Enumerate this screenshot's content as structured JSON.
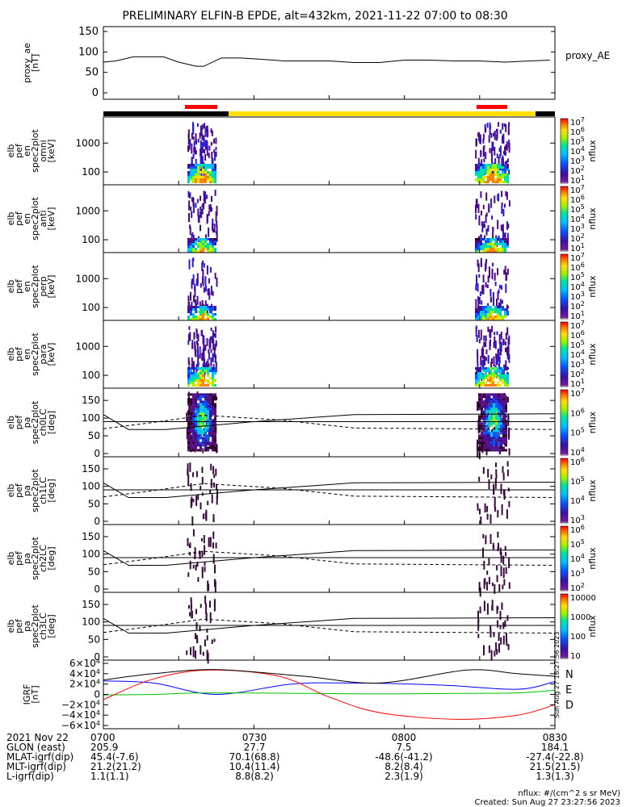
{
  "title": "PRELIMINARY ELFIN-B EPDE, alt=432km, 2021-11-22 07:00 to 08:30",
  "chart_data": [
    {
      "type": "line",
      "ylabel": "proxy_ae [nT]",
      "legend": "proxy_AE",
      "ylim": [
        0,
        150
      ],
      "yticks": [
        "150",
        "100",
        "50",
        "0"
      ],
      "x_minutes": [
        0,
        5,
        12,
        24,
        30,
        37,
        40,
        47,
        55,
        68,
        72,
        80,
        90,
        100,
        110,
        120,
        130,
        140,
        150,
        160,
        170,
        178
      ],
      "values": [
        75,
        78,
        88,
        88,
        75,
        65,
        65,
        85,
        85,
        80,
        78,
        78,
        78,
        74,
        74,
        80,
        80,
        78,
        78,
        75,
        78,
        80
      ]
    },
    {
      "type": "heatmap",
      "ylabel": "elb pef en spec2plot omni [keV]",
      "ylim_keV": [
        50,
        7000
      ],
      "yticks": [
        "1000",
        "100"
      ],
      "colorbar": {
        "label": "nflux",
        "ticks": [
          "10^7",
          "10^6",
          "10^5",
          "10^4",
          "10^3",
          "10^2",
          "10^1"
        ]
      },
      "passes_minutes": [
        [
          16,
          23
        ],
        [
          139,
          148
        ]
      ]
    },
    {
      "type": "heatmap",
      "ylabel": "elb pef en spec2plot anti [keV]",
      "yticks": [
        "1000",
        "100"
      ],
      "colorbar": {
        "label": "nflux",
        "ticks": [
          "10^7",
          "10^6",
          "10^5",
          "10^4",
          "10^3",
          "10^2",
          "10^1"
        ]
      }
    },
    {
      "type": "heatmap",
      "ylabel": "elb pef en spec2plot perp [keV]",
      "yticks": [
        "1000",
        "100"
      ],
      "colorbar": {
        "label": "nflux",
        "ticks": [
          "10^7",
          "10^6",
          "10^5",
          "10^4",
          "10^3",
          "10^2",
          "10^1"
        ]
      }
    },
    {
      "type": "heatmap",
      "ylabel": "elb pef en spec2plot para [keV]",
      "yticks": [
        "1000",
        "100"
      ],
      "colorbar": {
        "label": "nflux",
        "ticks": [
          "10^7",
          "10^6",
          "10^5",
          "10^4",
          "10^3",
          "10^2",
          "10^1"
        ]
      }
    },
    {
      "type": "heatmap",
      "ylabel": "elb pef pa spec2plot ch0LC [deg]",
      "ylim": [
        0,
        180
      ],
      "yticks": [
        "150",
        "100",
        "50",
        "0"
      ],
      "colorbar": {
        "label": "nflux",
        "ticks": [
          "10^7",
          "10^6",
          "10^5",
          "10^4"
        ]
      }
    },
    {
      "type": "heatmap",
      "ylabel": "elb pef pa spec2plot ch1LC [deg]",
      "ylim": [
        0,
        180
      ],
      "yticks": [
        "150",
        "100",
        "50",
        "0"
      ],
      "colorbar": {
        "label": "nflux",
        "ticks": [
          "10^6",
          "10^5",
          "10^4",
          "10^3"
        ]
      }
    },
    {
      "type": "heatmap",
      "ylabel": "elb pef pa spec2plot ch2LC [deg]",
      "ylim": [
        0,
        180
      ],
      "yticks": [
        "150",
        "100",
        "50",
        "0"
      ],
      "colorbar": {
        "label": "nflux",
        "ticks": [
          "10^6",
          "10^5",
          "10^4",
          "10^3",
          "10^2"
        ]
      }
    },
    {
      "type": "heatmap",
      "ylabel": "elb pef pa spec2plot ch3LC [deg]",
      "ylim": [
        0,
        180
      ],
      "yticks": [
        "150",
        "100",
        "50",
        "0"
      ],
      "colorbar": {
        "label": "nflux",
        "ticks": [
          "10000",
          "1000",
          "100",
          "10"
        ]
      }
    },
    {
      "type": "line",
      "ylabel": "IGRF [nT]",
      "ylim": [
        -60000,
        60000
      ],
      "yticks": [
        "6×10^4",
        "4×10^4",
        "2×10^4",
        "0",
        "−2×10^4",
        "−4×10^4",
        "−6×10^4"
      ],
      "series": [
        {
          "name": "N",
          "color": "#0000ff",
          "x_minutes": [
            0,
            20,
            45,
            75,
            100,
            135,
            165,
            180
          ],
          "values": [
            26000,
            22000,
            0,
            20000,
            22000,
            18000,
            10000,
            25000
          ]
        },
        {
          "name": "E",
          "color": "#00c000",
          "x_minutes": [
            0,
            20,
            40,
            80,
            110,
            140,
            165,
            180
          ],
          "values": [
            -1000,
            0,
            3000,
            2000,
            1000,
            2000,
            3000,
            8000
          ]
        },
        {
          "name": "D",
          "color": "#ff0000",
          "x_minutes": [
            0,
            20,
            42,
            70,
            90,
            110,
            140,
            165,
            180
          ],
          "values": [
            -10000,
            30000,
            47000,
            35000,
            -5000,
            -35000,
            -48000,
            -40000,
            -20000
          ]
        },
        {
          "name": "",
          "color": "#000000",
          "x_minutes": [
            0,
            20,
            45,
            80,
            110,
            145,
            165,
            180
          ],
          "values": [
            28000,
            40000,
            48000,
            35000,
            22000,
            47000,
            40000,
            35000
          ]
        }
      ]
    }
  ],
  "stamp": "Sun Aug 27 16:27:56 2023",
  "xaxis": {
    "rows": [
      {
        "label": "2021 Nov 22",
        "values": [
          "0700",
          "0730",
          "0800",
          "0830"
        ]
      },
      {
        "label": "GLON (east)",
        "values": [
          "205.9",
          "27.7",
          "7.5",
          "184.1"
        ]
      },
      {
        "label": "MLAT-igrf(dip)",
        "values": [
          "45.4(-7.6)",
          "70.1(68.8)",
          "-48.6(-41.2)",
          "-27.4(-22.8)"
        ]
      },
      {
        "label": "MLT-igrf(dip)",
        "values": [
          "21.2(21.2)",
          "10.4(11.4)",
          "8.2(8.4)",
          "21.5(21.5)"
        ]
      },
      {
        "label": "L-igrf(dip)",
        "values": [
          "1.1(1.1)",
          "8.8(8.2)",
          "2.3(1.9)",
          "1.3(1.3)"
        ]
      }
    ]
  },
  "footer": {
    "units": "nflux: #/(cm^2 s sr MeV)",
    "created": "Created: Sun Aug 27 23:27:56 2023"
  }
}
